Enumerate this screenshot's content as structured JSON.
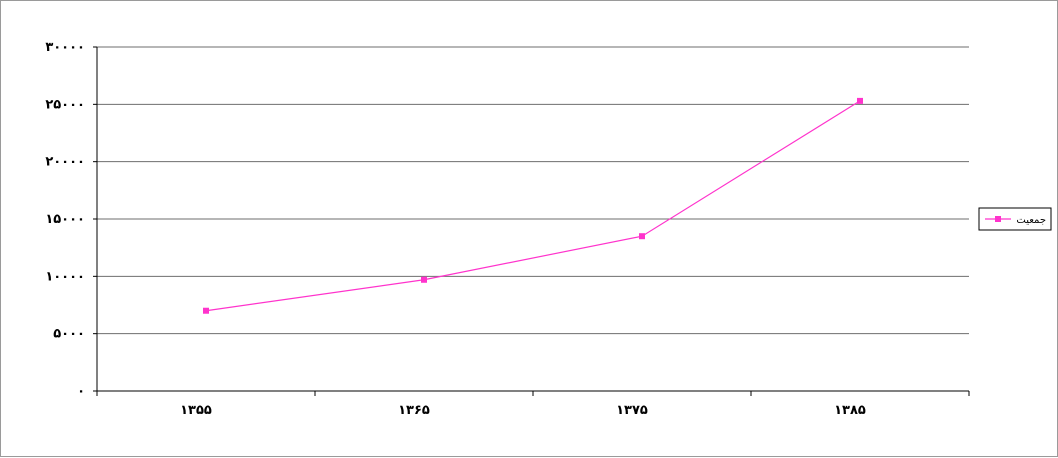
{
  "chart_data": {
    "type": "line",
    "categories": [
      "۱۳۵۵",
      "۱۳۶۵",
      "۱۳۷۵",
      "۱۳۸۵"
    ],
    "series": [
      {
        "name": "جمعیت",
        "values": [
          7000,
          9700,
          13500,
          25300
        ],
        "color": "#ff33cc"
      }
    ],
    "y_ticks": [
      {
        "value": 0,
        "label": "۰"
      },
      {
        "value": 5000,
        "label": "۵۰۰۰"
      },
      {
        "value": 10000,
        "label": "۱۰۰۰۰"
      },
      {
        "value": 15000,
        "label": "۱۵۰۰۰"
      },
      {
        "value": 20000,
        "label": "۲۰۰۰۰"
      },
      {
        "value": 25000,
        "label": "۲۵۰۰۰"
      },
      {
        "value": 30000,
        "label": "۳۰۰۰۰"
      }
    ],
    "ylim": [
      0,
      30000
    ],
    "grid": true,
    "legend_position": "right",
    "title": "",
    "xlabel": "",
    "ylabel": ""
  }
}
